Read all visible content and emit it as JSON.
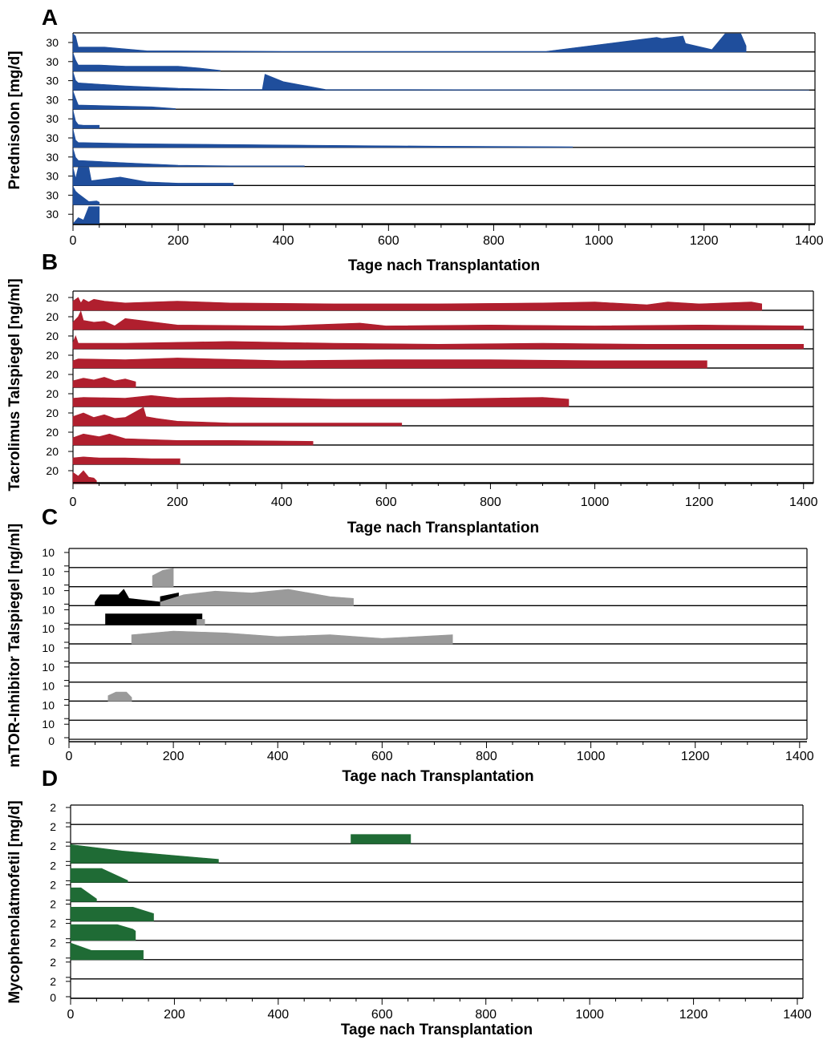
{
  "chart_data": [
    {
      "panel": "A",
      "type": "area",
      "ylabel": "Prednisolon [mg/d]",
      "xlabel": "Tage nach Transplantation",
      "xticks": [
        0,
        200,
        400,
        600,
        800,
        1000,
        1200,
        1400
      ],
      "xlim": [
        0,
        1400
      ],
      "row_tick_label": "30",
      "row_max": 30,
      "color": "#1f4e9c",
      "series": [
        {
          "x": [
            0,
            5,
            10,
            60,
            140,
            400,
            600,
            900,
            1110,
            1120,
            1160,
            1165,
            1215,
            1240,
            1270,
            1280
          ],
          "y": [
            30,
            26,
            8,
            8,
            2,
            1,
            1,
            1,
            24,
            22,
            26,
            14,
            4,
            30,
            30,
            10
          ]
        },
        {
          "x": [
            0,
            5,
            10,
            50,
            100,
            200,
            240,
            280
          ],
          "y": [
            30,
            18,
            10,
            10,
            8,
            8,
            5,
            1
          ]
        },
        {
          "x": [
            0,
            5,
            10,
            100,
            200,
            300,
            360,
            365,
            400,
            480,
            1400
          ],
          "y": [
            30,
            16,
            12,
            7,
            3,
            1,
            1,
            26,
            14,
            1,
            0
          ]
        },
        {
          "x": [
            0,
            5,
            10,
            100,
            150,
            195
          ],
          "y": [
            30,
            18,
            7,
            5,
            4,
            1
          ]
        },
        {
          "x": [
            0,
            5,
            10,
            20,
            40,
            50
          ],
          "y": [
            30,
            12,
            6,
            5,
            5,
            5
          ]
        },
        {
          "x": [
            0,
            5,
            10,
            120,
            400,
            700,
            950
          ],
          "y": [
            30,
            12,
            8,
            6,
            4,
            2,
            1
          ]
        },
        {
          "x": [
            0,
            5,
            10,
            100,
            200,
            300,
            440
          ],
          "y": [
            30,
            15,
            10,
            6,
            2,
            1,
            1
          ]
        },
        {
          "x": [
            0,
            5,
            10,
            30,
            35,
            90,
            140,
            200,
            305
          ],
          "y": [
            30,
            12,
            30,
            30,
            8,
            14,
            6,
            4,
            4
          ]
        },
        {
          "x": [
            0,
            5,
            10,
            30,
            45,
            50
          ],
          "y": [
            30,
            22,
            18,
            5,
            6,
            4
          ]
        },
        {
          "x": [
            0,
            10,
            20,
            30,
            35,
            50
          ],
          "y": [
            0,
            10,
            6,
            28,
            28,
            28
          ]
        }
      ]
    },
    {
      "panel": "B",
      "type": "area",
      "ylabel": "Tacrolimus Talspiegel [ng/ml]",
      "xlabel": "Tage nach Transplantation",
      "xticks": [
        0,
        200,
        400,
        600,
        800,
        1000,
        1200,
        1400
      ],
      "xlim": [
        0,
        1400
      ],
      "row_tick_label": "20",
      "row_max": 20,
      "color": "#b01f2e",
      "series": [
        {
          "x": [
            0,
            10,
            15,
            20,
            30,
            40,
            60,
            100,
            200,
            300,
            500,
            700,
            900,
            1000,
            1100,
            1140,
            1200,
            1300,
            1320
          ],
          "y": [
            10,
            14,
            8,
            12,
            9,
            12,
            10,
            8,
            10,
            8,
            7,
            7,
            8,
            9,
            6,
            9,
            7,
            9,
            7
          ]
        },
        {
          "x": [
            0,
            10,
            15,
            20,
            40,
            60,
            80,
            100,
            200,
            400,
            550,
            600,
            800,
            1000,
            1200,
            1400
          ],
          "y": [
            8,
            14,
            20,
            10,
            8,
            9,
            4,
            12,
            5,
            4,
            7,
            4,
            5,
            4,
            5,
            4
          ]
        },
        {
          "x": [
            0,
            5,
            10,
            100,
            300,
            500,
            700,
            900,
            1100,
            1300,
            1400
          ],
          "y": [
            7,
            14,
            6,
            6,
            8,
            6,
            5,
            6,
            5,
            5,
            5
          ]
        },
        {
          "x": [
            0,
            10,
            100,
            200,
            400,
            600,
            800,
            1000,
            1215
          ],
          "y": [
            8,
            10,
            9,
            11,
            8,
            9,
            9,
            8,
            8
          ]
        },
        {
          "x": [
            0,
            20,
            40,
            60,
            80,
            100,
            120
          ],
          "y": [
            7,
            10,
            8,
            11,
            7,
            9,
            6
          ]
        },
        {
          "x": [
            0,
            20,
            100,
            150,
            200,
            300,
            500,
            700,
            900,
            950
          ],
          "y": [
            9,
            10,
            9,
            12,
            9,
            10,
            8,
            8,
            10,
            8
          ]
        },
        {
          "x": [
            0,
            20,
            40,
            60,
            80,
            100,
            135,
            140,
            160,
            200,
            300,
            630
          ],
          "y": [
            10,
            14,
            9,
            12,
            8,
            9,
            20,
            10,
            8,
            5,
            3,
            3
          ]
        },
        {
          "x": [
            0,
            20,
            50,
            70,
            100,
            200,
            300,
            460
          ],
          "y": [
            8,
            12,
            9,
            12,
            7,
            5,
            5,
            4
          ]
        },
        {
          "x": [
            0,
            20,
            50,
            100,
            150,
            205
          ],
          "y": [
            7,
            8,
            7,
            7,
            6,
            6
          ]
        },
        {
          "x": [
            0,
            10,
            20,
            30,
            40,
            45
          ],
          "y": [
            12,
            8,
            14,
            7,
            6,
            3
          ]
        }
      ]
    },
    {
      "panel": "C",
      "type": "area",
      "ylabel": "mTOR-Inhibitor Talspiegel [ng/ml]",
      "xlabel": "Tage nach Transplantation",
      "xticks": [
        0,
        200,
        400,
        600,
        800,
        1000,
        1200,
        1400
      ],
      "xlim": [
        0,
        1400
      ],
      "row_tick_label": "10",
      "row_max": 10,
      "bottom_tick_label": "0",
      "colors": {
        "series_black": "#000000",
        "series_gray": "#9a9a9a"
      },
      "series": [
        {
          "row": 1,
          "color": "gray",
          "x": [
            160,
            180,
            200
          ],
          "y": [
            6,
            9,
            10
          ]
        },
        {
          "row": 2,
          "color": "black",
          "x": [
            50,
            60,
            95,
            105,
            115,
            175
          ],
          "y": [
            2,
            6,
            6,
            9,
            4,
            2
          ]
        },
        {
          "row": 2,
          "color": "black",
          "x": [
            175,
            210
          ],
          "y": [
            5,
            7
          ]
        },
        {
          "row": 2,
          "color": "gray",
          "x": [
            175,
            220,
            280,
            350,
            420,
            500,
            545
          ],
          "y": [
            2,
            6,
            8,
            7,
            9,
            5,
            4
          ]
        },
        {
          "row": 3,
          "color": "black",
          "x": [
            70,
            255
          ],
          "y": [
            6,
            6
          ]
        },
        {
          "row": 3,
          "color": "gray",
          "x": [
            245,
            260
          ],
          "y": [
            3,
            3
          ]
        },
        {
          "row": 4,
          "color": "gray",
          "x": [
            120,
            200,
            300,
            400,
            500,
            600,
            735
          ],
          "y": [
            5,
            7,
            6,
            4,
            5,
            3,
            5
          ]
        },
        {
          "row": 7,
          "color": "gray",
          "x": [
            75,
            90,
            110,
            120
          ],
          "y": [
            3,
            5,
            5,
            2
          ]
        }
      ]
    },
    {
      "panel": "D",
      "type": "area",
      "ylabel": "Mycophenolatmofetil [mg/d]",
      "xlabel": "Tage nach Transplantation",
      "xticks": [
        0,
        200,
        400,
        600,
        800,
        1000,
        1200,
        1400
      ],
      "xlim": [
        0,
        1400
      ],
      "row_tick_label": "2",
      "row_max": 2,
      "bottom_tick_label": "0",
      "color": "#1f6b35",
      "series": [
        {
          "x": [],
          "y": []
        },
        {
          "x": [
            540,
            655
          ],
          "y": [
            1,
            1
          ]
        },
        {
          "x": [
            0,
            100,
            285
          ],
          "y": [
            2,
            1.3,
            0.4
          ]
        },
        {
          "x": [
            0,
            60,
            110
          ],
          "y": [
            1.5,
            1.5,
            0.2
          ]
        },
        {
          "x": [
            0,
            20,
            50
          ],
          "y": [
            1.5,
            1.5,
            0.3
          ]
        },
        {
          "x": [
            0,
            5,
            120,
            160
          ],
          "y": [
            1.5,
            1.5,
            1.5,
            0.8
          ]
        },
        {
          "x": [
            0,
            90,
            120,
            125
          ],
          "y": [
            1.7,
            1.7,
            1.2,
            1
          ]
        },
        {
          "x": [
            0,
            40,
            140
          ],
          "y": [
            1.8,
            1,
            1
          ]
        },
        {
          "x": [],
          "y": []
        },
        {
          "x": [],
          "y": []
        }
      ]
    }
  ]
}
